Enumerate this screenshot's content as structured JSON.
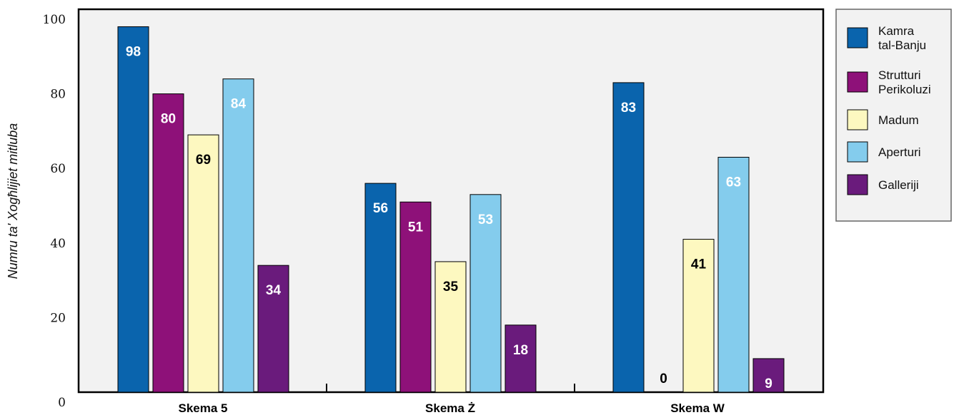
{
  "chart_data": {
    "type": "bar",
    "categories": [
      "Skema 5",
      "Skema Ż",
      "Skema W"
    ],
    "ylabel": "Numru ta' Xogħlijiet mitluba",
    "xlabel": "",
    "ylim": [
      0,
      100
    ],
    "yticks": [
      "0",
      "20",
      "40",
      "60",
      "80",
      "100"
    ],
    "grid": false,
    "legend_position": "right",
    "series": [
      {
        "name": "Kamra tal-Banju",
        "color": "#0a64ad",
        "label_color": "#ffffff",
        "values": [
          98,
          56,
          83
        ]
      },
      {
        "name": "Strutturi Perikoluzi",
        "color": "#8e1179",
        "label_color": "#ffffff",
        "values": [
          80,
          51,
          0
        ]
      },
      {
        "name": "Madum",
        "color": "#fdf8c0",
        "label_color": "#000000",
        "values": [
          69,
          35,
          41
        ]
      },
      {
        "name": "Aperturi",
        "color": "#84cced",
        "label_color": "#ffffff",
        "values": [
          84,
          53,
          63
        ]
      },
      {
        "name": "Galleriji",
        "color": "#6a1b7c",
        "label_color": "#ffffff",
        "values": [
          34,
          18,
          9
        ]
      }
    ],
    "legend_lines": [
      [
        "Kamra",
        "tal-Banju"
      ],
      [
        "Strutturi",
        "Perikoluzi"
      ],
      [
        "Madum"
      ],
      [
        "Aperturi"
      ],
      [
        "Galleriji"
      ]
    ],
    "value_labels": [
      [
        "98",
        "56",
        "83"
      ],
      [
        "80",
        "51",
        "0"
      ],
      [
        "69",
        "35",
        "41"
      ],
      [
        "84",
        "53",
        "63"
      ],
      [
        "34",
        "18",
        "9"
      ]
    ]
  }
}
